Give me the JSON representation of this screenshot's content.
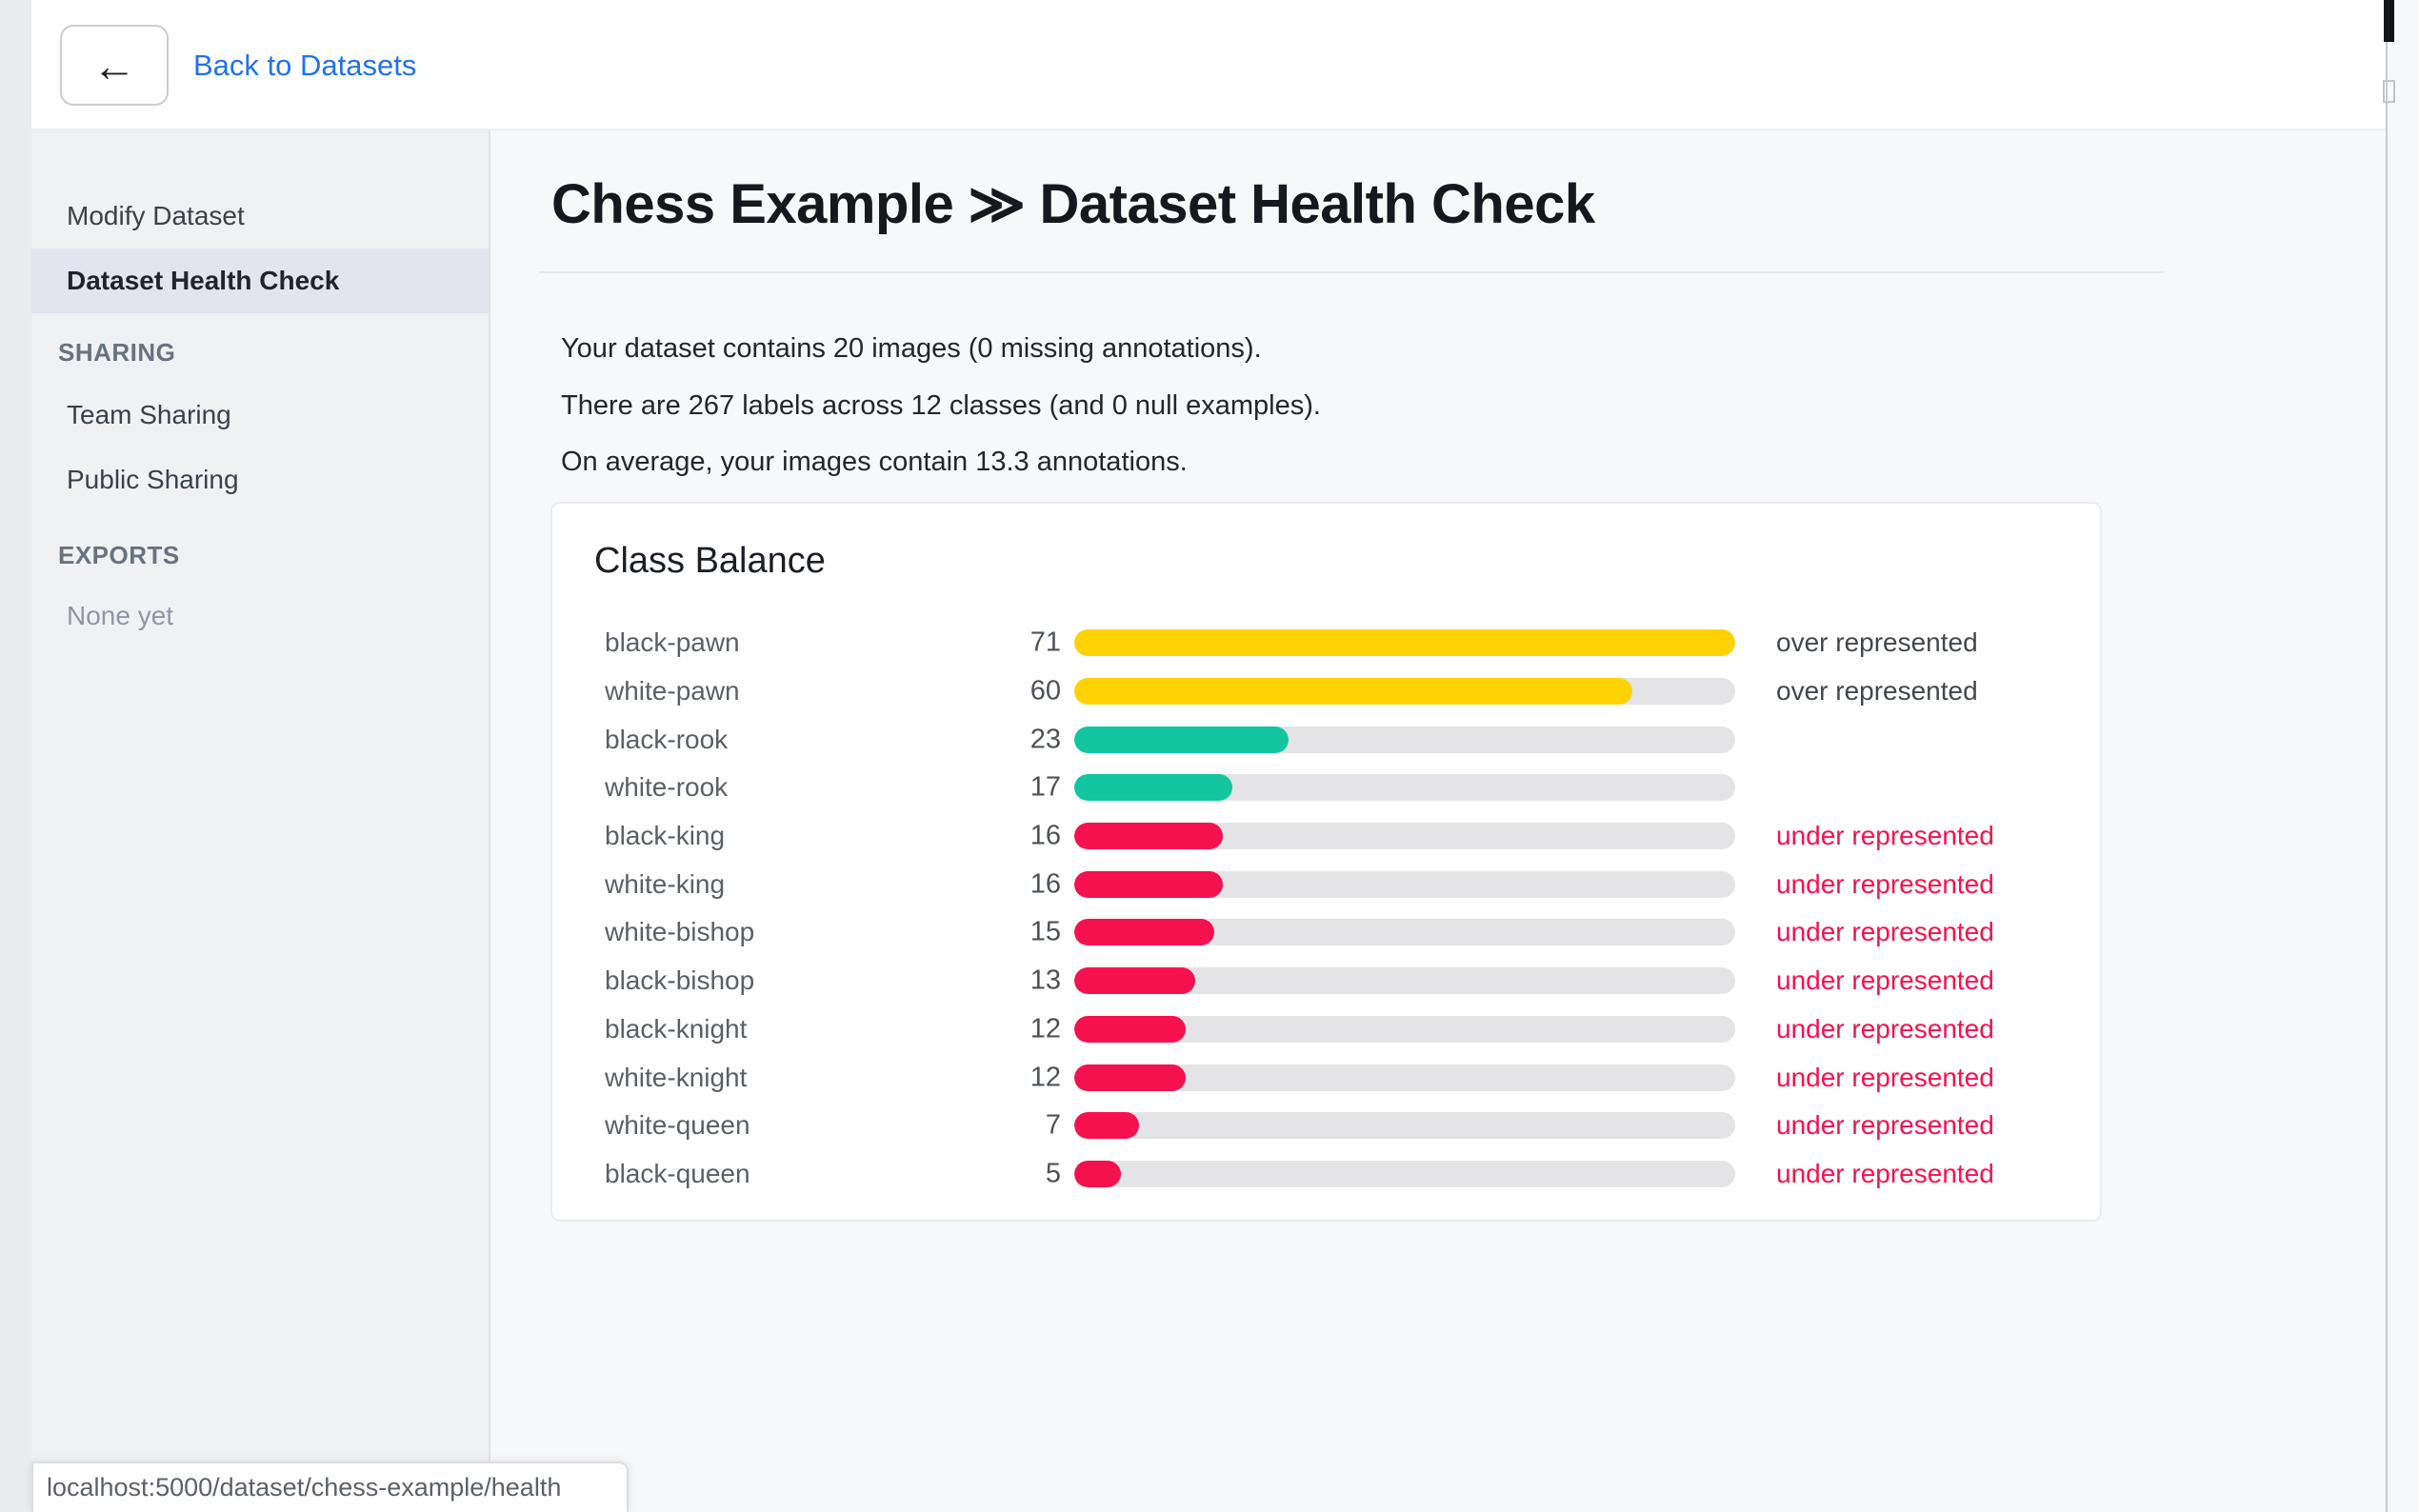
{
  "topbar": {
    "back_icon": "←",
    "back_link": "Back to Datasets"
  },
  "sidebar": {
    "items": [
      {
        "label": "Modify Dataset",
        "type": "item"
      },
      {
        "label": "Dataset Health Check",
        "type": "item",
        "active": true
      },
      {
        "label": "SHARING",
        "type": "header"
      },
      {
        "label": "Team Sharing",
        "type": "item"
      },
      {
        "label": "Public Sharing",
        "type": "item"
      },
      {
        "label": "EXPORTS",
        "type": "header"
      },
      {
        "label": "None yet",
        "type": "muted"
      }
    ]
  },
  "header": {
    "project": "Chess Example",
    "separator": "≫",
    "page": "Dataset Health Check"
  },
  "summary": {
    "line1": "Your dataset contains 20 images (0 missing annotations).",
    "line2": "There are 267 labels across 12 classes (and 0 null examples).",
    "line3": "On average, your images contain 13.3 annotations."
  },
  "chart_data": {
    "type": "bar",
    "orientation": "horizontal",
    "title": "Class Balance",
    "categories": [
      "black-pawn",
      "white-pawn",
      "black-rook",
      "white-rook",
      "black-king",
      "white-king",
      "white-bishop",
      "black-bishop",
      "black-knight",
      "white-knight",
      "white-queen",
      "black-queen"
    ],
    "values": [
      71,
      60,
      23,
      17,
      16,
      16,
      15,
      13,
      12,
      12,
      7,
      5
    ],
    "bar_colors": [
      "yellow",
      "yellow",
      "teal",
      "teal",
      "pink",
      "pink",
      "pink",
      "pink",
      "pink",
      "pink",
      "pink",
      "pink"
    ],
    "statuses": [
      "over represented",
      "over represented",
      "",
      "",
      "under represented",
      "under represented",
      "under represented",
      "under represented",
      "under represented",
      "under represented",
      "under represented",
      "under represented"
    ],
    "xlim": [
      0,
      71
    ],
    "legend": false,
    "grid": false
  },
  "status_bar": {
    "url": "localhost:5000/dataset/chess-example/health"
  },
  "colors": {
    "yellow": "#FFD303",
    "teal": "#12C6A1",
    "pink": "#F5114E",
    "track": "#E4E4E6",
    "over_text": "#43474C",
    "under_text": "#F7114D",
    "link_blue": "#2173E8",
    "active_item_bg": "#E4E4EF"
  }
}
